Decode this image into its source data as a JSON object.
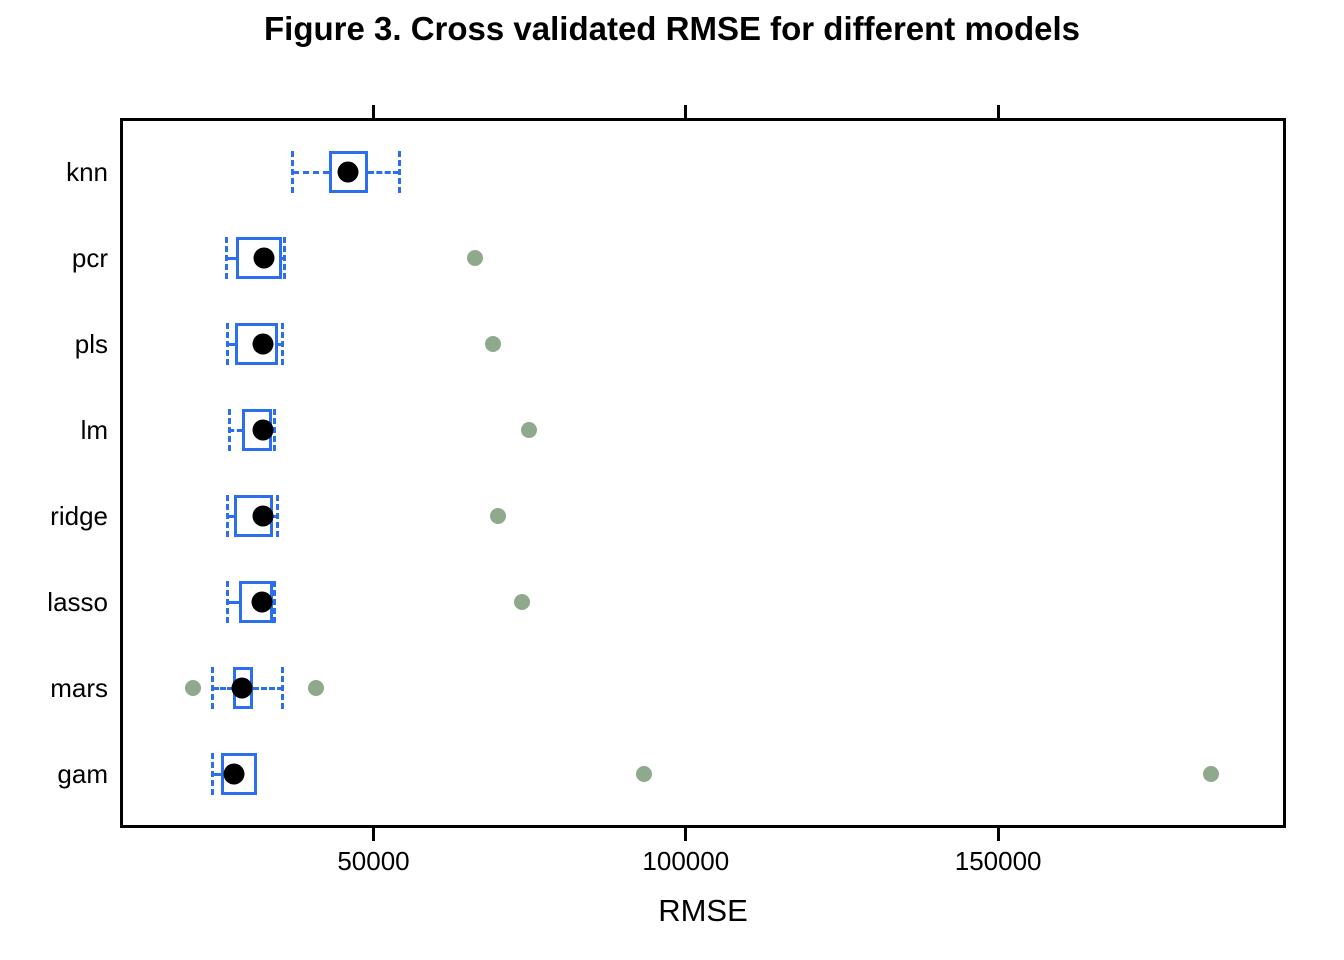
{
  "chart_data": {
    "type": "boxplot",
    "orientation": "horizontal",
    "title": "Figure 3. Cross validated RMSE for different models",
    "xlabel": "RMSE",
    "ylabel": "",
    "xlim": [
      9900,
      195600
    ],
    "grid": "off",
    "legend": "none",
    "xticks": [
      {
        "value": 50000,
        "label": "50000"
      },
      {
        "value": 100000,
        "label": "100000"
      },
      {
        "value": 150000,
        "label": "150000"
      }
    ],
    "categories": [
      "knn",
      "pcr",
      "pls",
      "lm",
      "ridge",
      "lasso",
      "mars",
      "gam"
    ],
    "series": [
      {
        "model": "knn",
        "whisker_low": 37100,
        "q1": 42900,
        "median": 45900,
        "q3": 49200,
        "whisker_high": 54100,
        "outliers": []
      },
      {
        "model": "pcr",
        "whisker_low": 26400,
        "q1": 28000,
        "median": 32500,
        "q3": 35400,
        "whisker_high": 35800,
        "outliers": [
          66200
        ]
      },
      {
        "model": "pls",
        "whisker_low": 26600,
        "q1": 27800,
        "median": 32300,
        "q3": 34700,
        "whisker_high": 35500,
        "outliers": [
          69100
        ]
      },
      {
        "model": "lm",
        "whisker_low": 26900,
        "q1": 29000,
        "median": 32300,
        "q3": 33800,
        "whisker_high": 34100,
        "outliers": [
          74900
        ]
      },
      {
        "model": "ridge",
        "whisker_low": 26600,
        "q1": 27700,
        "median": 32300,
        "q3": 33900,
        "whisker_high": 34700,
        "outliers": [
          69900
        ]
      },
      {
        "model": "lasso",
        "whisker_low": 26700,
        "q1": 28500,
        "median": 32200,
        "q3": 33900,
        "whisker_high": 34100,
        "outliers": [
          73800
        ]
      },
      {
        "model": "mars",
        "whisker_low": 24300,
        "q1": 27500,
        "median": 29000,
        "q3": 30700,
        "whisker_high": 35500,
        "outliers": [
          21100,
          40800
        ]
      },
      {
        "model": "gam",
        "whisker_low": 24300,
        "q1": 25600,
        "median": 27700,
        "q3": 31400,
        "whisker_high": 31400,
        "outliers": [
          93300,
          184000
        ]
      }
    ],
    "style": {
      "box_color": "#2B6FEC",
      "median_color": "#000000",
      "outlier_color": "#8FA98C",
      "axis_color": "#000000",
      "background": "#FFFFFF"
    }
  }
}
